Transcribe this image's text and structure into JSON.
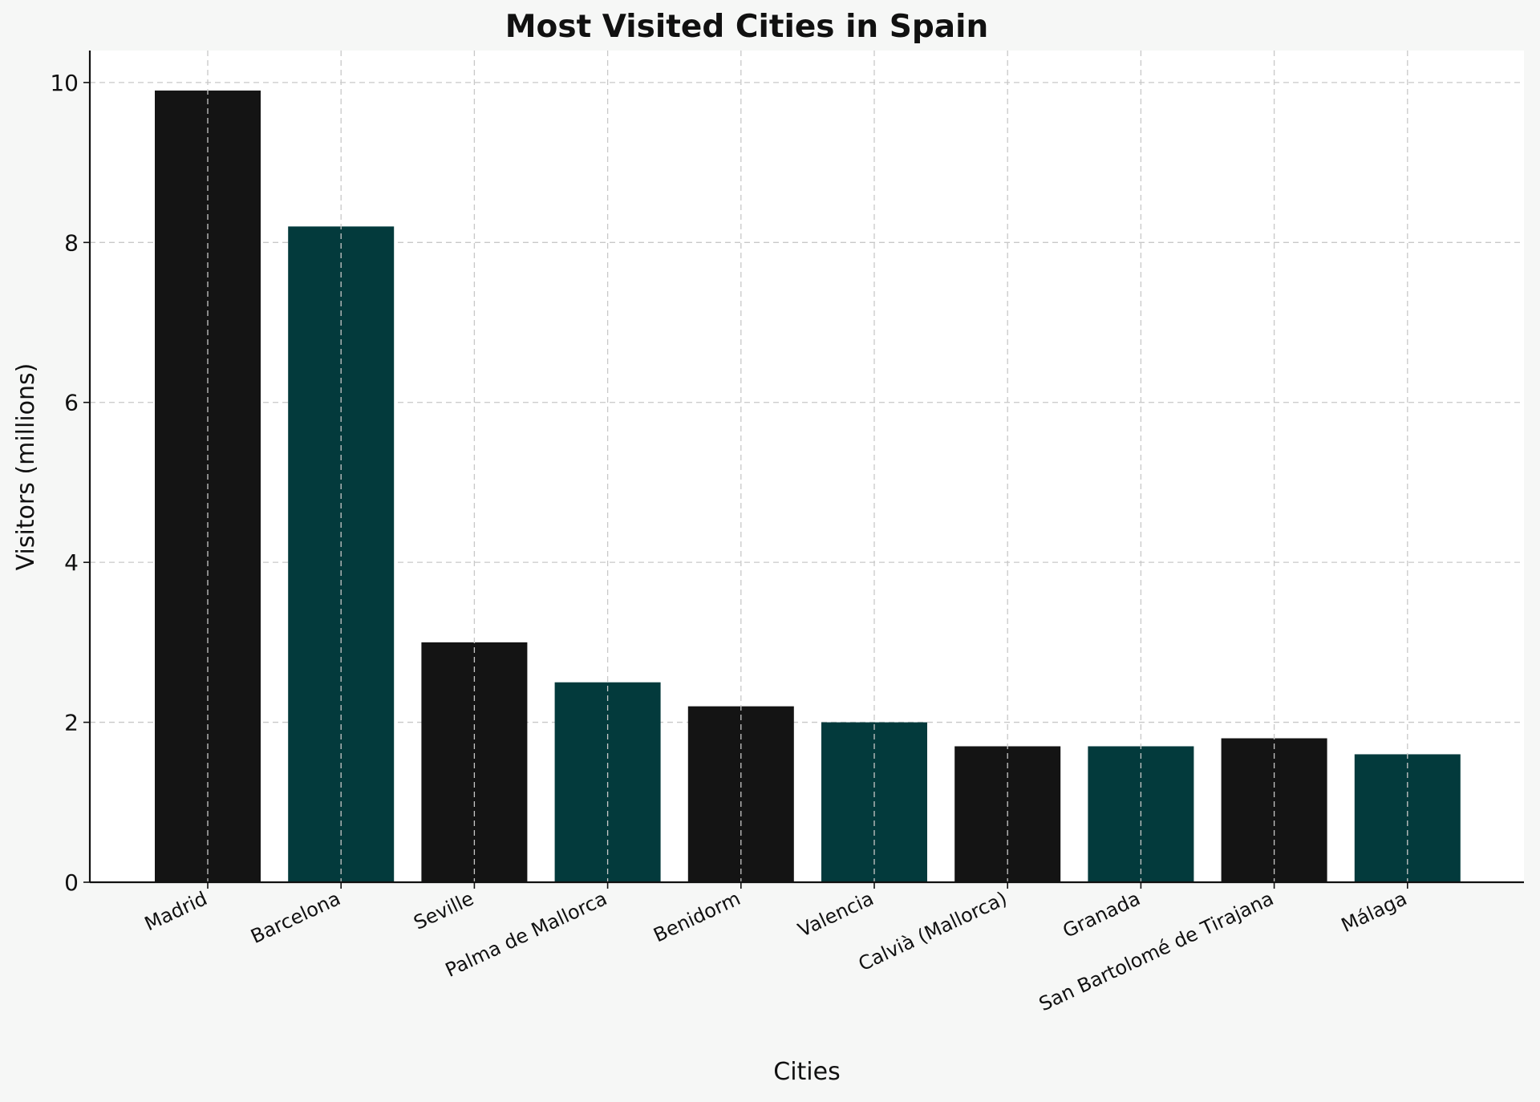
{
  "chart_data": {
    "type": "bar",
    "title": "Most Visited Cities in Spain",
    "xlabel": "Cities",
    "ylabel": "Visitors (millions)",
    "categories": [
      "Madrid",
      "Barcelona",
      "Seville",
      "Palma de Mallorca",
      "Benidorm",
      "Valencia",
      "Calvià (Mallorca)",
      "Granada",
      "San Bartolomé de Tirajana",
      "Málaga"
    ],
    "values": [
      9.9,
      8.2,
      3.0,
      2.5,
      2.2,
      2.0,
      1.7,
      1.7,
      1.8,
      1.6
    ],
    "bar_colors": [
      "#141414",
      "#033a3c"
    ],
    "ylim": [
      0,
      10.4
    ],
    "yticks": [
      0,
      2,
      4,
      6,
      8,
      10
    ],
    "grid": true
  }
}
